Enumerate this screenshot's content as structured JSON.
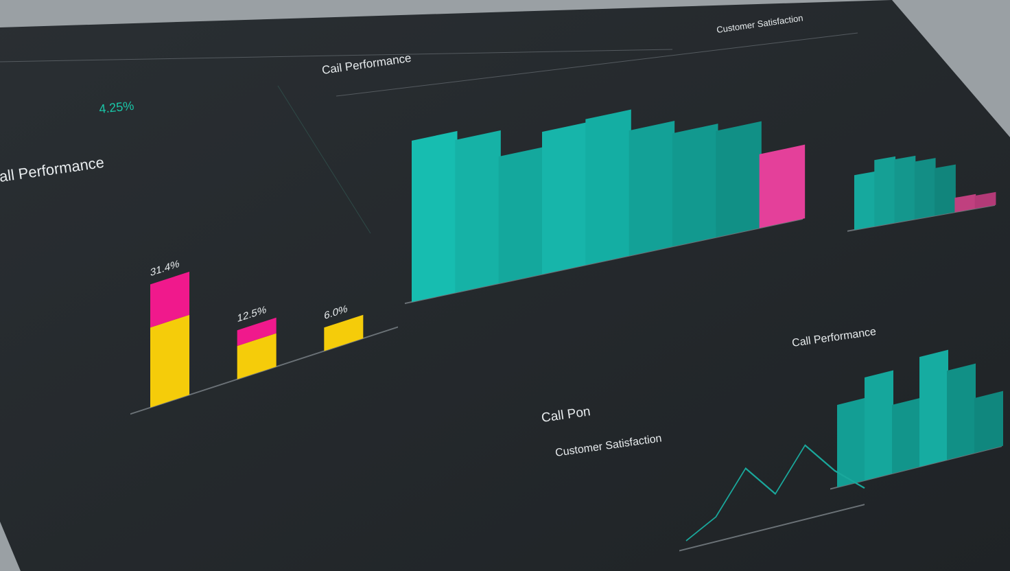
{
  "chart_data": [
    {
      "type": "stacked",
      "title": "all Performance",
      "subtitle": "4.25%",
      "series": [
        {
          "color": "#f5cc0a",
          "values": [
            20.4,
            8.5,
            6.0
          ]
        },
        {
          "color": "#f0198c",
          "values": [
            11.0,
            4.0,
            0
          ]
        }
      ],
      "annotations": [
        "31.4%",
        "12.5%",
        "6.0%"
      ],
      "ylim": [
        0,
        35
      ]
    },
    {
      "type": "bar",
      "title": "Cail Performance",
      "values": [
        9.4,
        8.9,
        7.4,
        8.3,
        8.5,
        7.3,
        6.6,
        6.2,
        4.3
      ],
      "colors": [
        "#17bdb0",
        "#16b2a6",
        "#14a89d",
        "#17b5aa",
        "#14aea3",
        "#13a197",
        "#12998f",
        "#119086",
        "#e4409a"
      ],
      "ylim": [
        0,
        10
      ]
    },
    {
      "type": "bar",
      "title": "Customer Satisfaction",
      "values": [
        3.8,
        4.6,
        4.4,
        4.0,
        3.3,
        1.0,
        0.9
      ],
      "colors": [
        "#16a99e",
        "#15a095",
        "#14978d",
        "#138e85",
        "#11857c",
        "#c0407f",
        "#b33a77"
      ],
      "ylim": [
        0,
        5
      ]
    },
    {
      "type": "bar",
      "title": "Call Performance",
      "values": [
        6.0,
        7.5,
        5.0,
        8.0,
        6.5,
        4.0
      ],
      "colors": [
        "#139e94",
        "#15a79c",
        "#12958b",
        "#16aca1",
        "#119086",
        "#10877e"
      ],
      "ylim": [
        0,
        10
      ]
    },
    {
      "type": "line",
      "title": "Call Pon",
      "subtitle": "Customer Satisfaction",
      "values": [
        1,
        3,
        8,
        4,
        9,
        5,
        2
      ],
      "color": "#1aa89c",
      "ylim": [
        0,
        10
      ]
    }
  ]
}
